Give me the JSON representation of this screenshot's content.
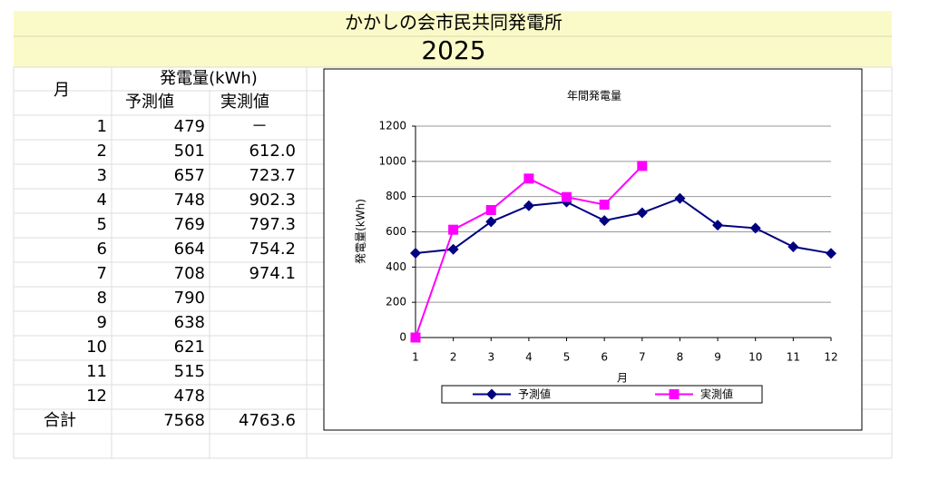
{
  "header": {
    "title": "かかしの会市民共同発電所",
    "year": "2025"
  },
  "table": {
    "month_header": "月",
    "group_header": "発電量(kWh)",
    "columns": [
      "予測値",
      "実測値"
    ],
    "rows": [
      [
        "1",
        "479",
        "－"
      ],
      [
        "2",
        "501",
        "612.0"
      ],
      [
        "3",
        "657",
        "723.7"
      ],
      [
        "4",
        "748",
        "902.3"
      ],
      [
        "5",
        "769",
        "797.3"
      ],
      [
        "6",
        "664",
        "754.2"
      ],
      [
        "7",
        "708",
        "974.1"
      ],
      [
        "8",
        "790"
      ],
      [
        "9",
        "638"
      ],
      [
        "10",
        "621"
      ],
      [
        "11",
        "515"
      ],
      [
        "12",
        "478"
      ],
      [
        "合計",
        "7568",
        "4763.6"
      ]
    ]
  },
  "chart_data": {
    "type": "line",
    "title": "年間発電量",
    "x_label": "月",
    "y_label": "発電量(kWh)",
    "categories": [
      1,
      2,
      3,
      4,
      5,
      6,
      7,
      8,
      9,
      10,
      11,
      12
    ],
    "series": [
      {
        "name": "予測値",
        "color": "#000080",
        "marker": "diamond",
        "values": [
          479,
          501,
          657,
          748,
          769,
          664,
          708,
          790,
          638,
          621,
          515,
          478
        ]
      },
      {
        "name": "実測値",
        "color": "#ff00ff",
        "marker": "square",
        "values": [
          0,
          612.0,
          723.7,
          902.3,
          797.3,
          754.2,
          974.1,
          null,
          null,
          null,
          null,
          null
        ]
      }
    ],
    "ylim": [
      0,
      1200
    ],
    "yticks": [
      0,
      200,
      400,
      600,
      800,
      1000,
      1200
    ],
    "grid": true,
    "legend": "bottom"
  }
}
